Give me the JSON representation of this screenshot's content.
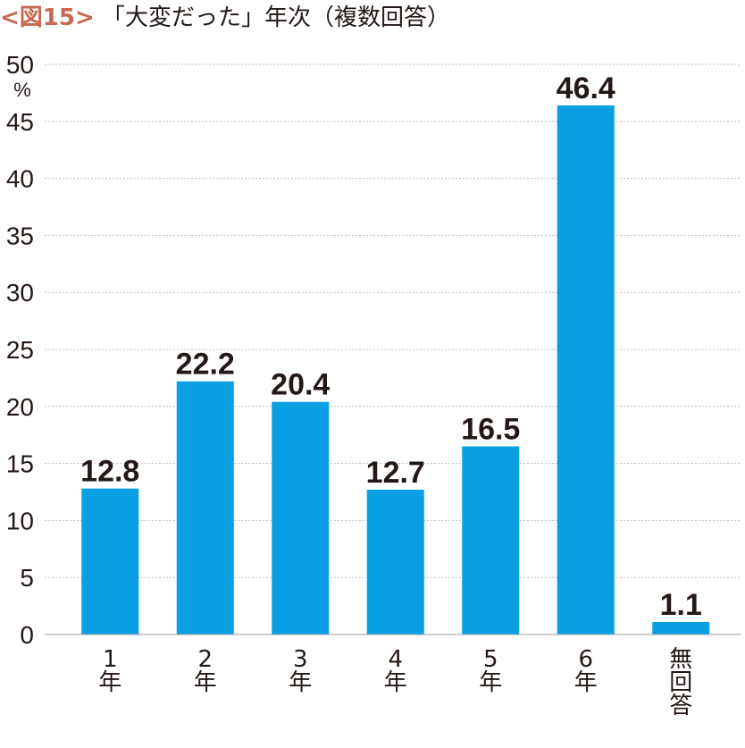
{
  "title": {
    "figure_label": "<図15>",
    "text": "「大変だった」年次（複数回答）"
  },
  "colors": {
    "bar": "#0a9fe3",
    "figure_label": "#c9694f",
    "gridline": "#bdbdbd",
    "text": "#231815"
  },
  "chart_data": {
    "type": "bar",
    "title": "「大変だった」年次（複数回答）",
    "categories": [
      [
        "1",
        "年"
      ],
      [
        "2",
        "年"
      ],
      [
        "3",
        "年"
      ],
      [
        "4",
        "年"
      ],
      [
        "5",
        "年"
      ],
      [
        "6",
        "年"
      ],
      [
        "無",
        "回",
        "答"
      ]
    ],
    "values": [
      12.8,
      22.2,
      20.4,
      12.7,
      16.5,
      46.4,
      1.1
    ],
    "value_labels": [
      "12.8",
      "22.2",
      "20.4",
      "12.7",
      "16.5",
      "46.4",
      "1.1"
    ],
    "xlabel": "",
    "ylabel": "",
    "y_unit": "%",
    "ylim": [
      0,
      50
    ],
    "y_ticks": [
      0,
      5,
      10,
      15,
      20,
      25,
      30,
      35,
      40,
      45,
      50
    ],
    "grid": true,
    "legend": "none"
  }
}
